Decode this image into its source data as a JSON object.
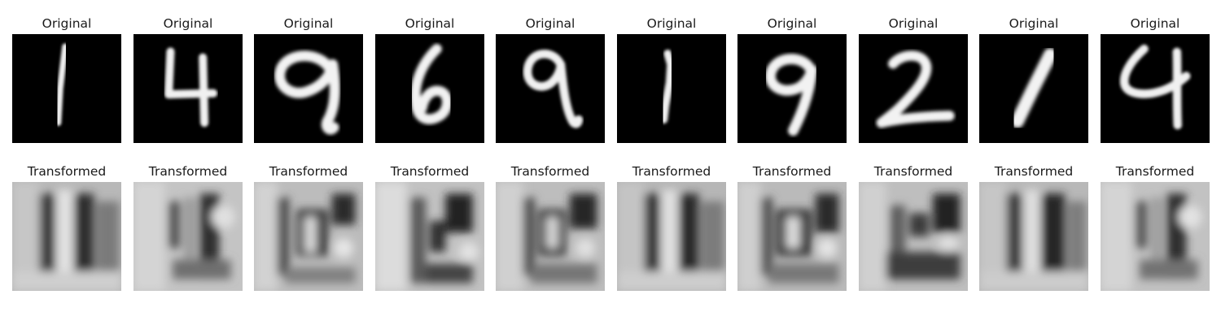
{
  "rows": [
    {
      "row": "original",
      "panels": [
        {
          "title": "Original"
        },
        {
          "title": "Original"
        },
        {
          "title": "Original"
        },
        {
          "title": "Original"
        },
        {
          "title": "Original"
        },
        {
          "title": "Original"
        },
        {
          "title": "Original"
        },
        {
          "title": "Original"
        },
        {
          "title": "Original"
        },
        {
          "title": "Original"
        }
      ]
    },
    {
      "row": "transformed",
      "panels": [
        {
          "title": "Transformed"
        },
        {
          "title": "Transformed"
        },
        {
          "title": "Transformed"
        },
        {
          "title": "Transformed"
        },
        {
          "title": "Transformed"
        },
        {
          "title": "Transformed"
        },
        {
          "title": "Transformed"
        },
        {
          "title": "Transformed"
        },
        {
          "title": "Transformed"
        },
        {
          "title": "Transformed"
        }
      ]
    }
  ],
  "colors": {
    "background": "#ffffff",
    "digit_bg": "#000000",
    "digit_stroke": "#f2f2f2",
    "transformed_bg": "#b4b4b4"
  }
}
